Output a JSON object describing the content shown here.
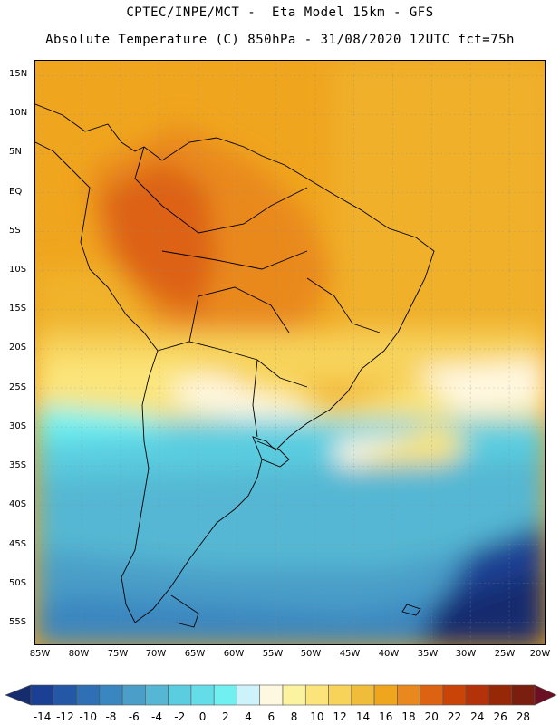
{
  "header": {
    "line1": "CPTEC/INPE/MCT -  Eta Model 15km - GFS",
    "line2": "Absolute Temperature (C) 850hPa - 31/08/2020 12UTC fct=75h"
  },
  "map": {
    "lat_labels": [
      "15N",
      "10N",
      "5N",
      "EQ",
      "5S",
      "10S",
      "15S",
      "20S",
      "25S",
      "30S",
      "35S",
      "40S",
      "45S",
      "50S",
      "55S"
    ],
    "lon_labels": [
      "85W",
      "80W",
      "75W",
      "70W",
      "65W",
      "60W",
      "55W",
      "50W",
      "45W",
      "40W",
      "35W",
      "30W",
      "25W",
      "20W"
    ]
  },
  "colorbar": {
    "labels": [
      "-14",
      "-12",
      "-10",
      "-8",
      "-6",
      "-4",
      "-2",
      "0",
      "2",
      "4",
      "6",
      "8",
      "10",
      "12",
      "14",
      "16",
      "18",
      "20",
      "22",
      "24",
      "26",
      "28"
    ],
    "colors": [
      "#1b3f93",
      "#2458a6",
      "#2f6fb3",
      "#3a86c0",
      "#4a9ec8",
      "#55b7d3",
      "#5acde0",
      "#64dde9",
      "#70f0f0",
      "#cdf2fb",
      "#fff8e1",
      "#fbf3a0",
      "#fbe57a",
      "#f7d35a",
      "#f0bd3a",
      "#f0a51e",
      "#e9891d",
      "#dd6212",
      "#ca4408",
      "#b3320a",
      "#962808",
      "#7a1f10"
    ],
    "under_color": "#152c6e",
    "over_color": "#6a0f24"
  }
}
